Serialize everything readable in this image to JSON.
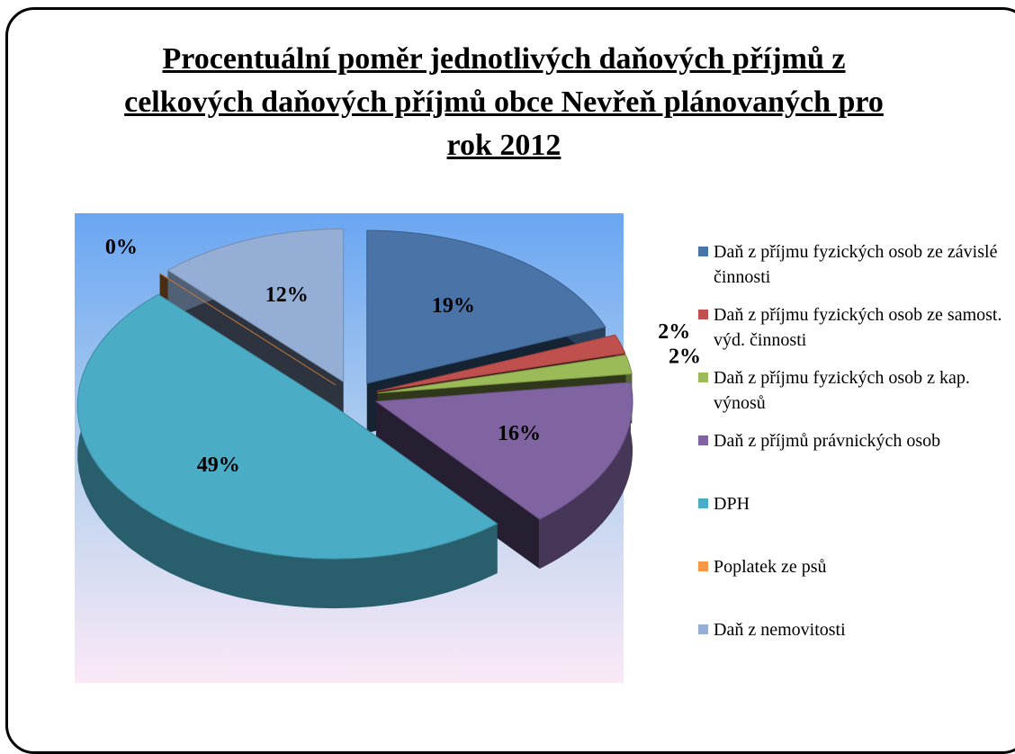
{
  "chart_data": {
    "type": "pie",
    "title": "Procentuální poměr jednotlivých daňových příjmů z celkových daňových příjmů obce Nevřeň plánovaných pro rok 2012",
    "categories": [
      "Daň z příjmu fyzických osob ze závislé činnosti",
      "Daň z příjmu fyzických osob ze samost. výd. činnosti",
      "Daň z příjmu fyzických osob z kap. výnosů",
      "Daň z příjmů právnických osob",
      "DPH",
      "Poplatek ze psů",
      "Daň z nemovitosti"
    ],
    "values": [
      19,
      2,
      2,
      16,
      49,
      0,
      12
    ],
    "value_labels": [
      "19%",
      "2%",
      "2%",
      "16%",
      "49%",
      "0%",
      "12%"
    ],
    "colors": [
      "#4a74a8",
      "#c0504d",
      "#9bbb59",
      "#8064a2",
      "#4bacc6",
      "#f79646",
      "#95aed6"
    ],
    "legend": "right"
  }
}
